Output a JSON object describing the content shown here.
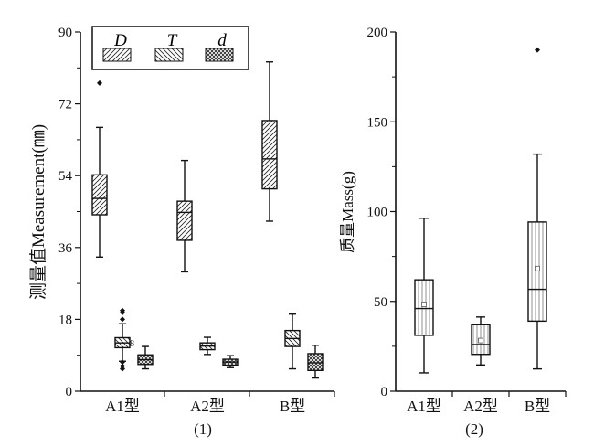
{
  "chart_data": [
    {
      "type": "box",
      "panel_label": "(1)",
      "ylabel": "测量值Measurement(㎜)",
      "ylim": [
        0,
        90
      ],
      "yticks": [
        "0",
        "18",
        "36",
        "54",
        "72",
        "90"
      ],
      "categories": [
        "A1型",
        "A2型",
        "B型"
      ],
      "legend": {
        "placement": "top-left",
        "entries": [
          "D",
          "T",
          "d"
        ]
      },
      "annotation": "8",
      "series": [
        {
          "name": "D",
          "pattern": "forward-hatch",
          "boxes": [
            {
              "min": 33.6,
              "q1": 44.2,
              "median": 48.3,
              "q3": 54.2,
              "max": 66.1,
              "outliers": [
                77.2
              ]
            },
            {
              "min": 29.9,
              "q1": 37.8,
              "median": 44.8,
              "q3": 47.6,
              "max": 57.8,
              "outliers": []
            },
            {
              "min": 42.6,
              "q1": 50.7,
              "median": 58.2,
              "q3": 67.8,
              "max": 82.5,
              "outliers": []
            }
          ]
        },
        {
          "name": "T",
          "pattern": "back-hatch",
          "boxes": [
            {
              "min": 7.5,
              "q1": 10.9,
              "median": 12.1,
              "q3": 13.4,
              "max": 16.9,
              "outliers": [
                20.2,
                19.7,
                18.0,
                7.3,
                6.3,
                5.6
              ]
            },
            {
              "min": 9.2,
              "q1": 10.4,
              "median": 11.3,
              "q3": 12.1,
              "max": 13.5,
              "outliers": []
            },
            {
              "min": 5.6,
              "q1": 11.2,
              "median": 13.2,
              "q3": 15.2,
              "max": 19.3,
              "outliers": []
            }
          ]
        },
        {
          "name": "d",
          "pattern": "cross-hatch",
          "boxes": [
            {
              "min": 5.6,
              "q1": 6.7,
              "median": 7.9,
              "q3": 9.1,
              "max": 11.2,
              "outliers": []
            },
            {
              "min": 5.9,
              "q1": 6.5,
              "median": 7.3,
              "q3": 8.0,
              "max": 8.9,
              "outliers": []
            },
            {
              "min": 3.3,
              "q1": 5.2,
              "median": 7.1,
              "q3": 9.4,
              "max": 11.5,
              "outliers": []
            }
          ]
        }
      ]
    },
    {
      "type": "box",
      "panel_label": "(2)",
      "ylabel": "质量Mass(g)",
      "ylim": [
        0,
        200
      ],
      "yticks": [
        "0",
        "50",
        "100",
        "150",
        "200"
      ],
      "categories": [
        "A1型",
        "A2型",
        "B型"
      ],
      "series": [
        {
          "pattern": "vertical-lines",
          "boxes": [
            {
              "min": 10.2,
              "q1": 31.1,
              "median": 46,
              "q3": 62,
              "max": 96.3,
              "mean": 48.4,
              "outliers": []
            },
            {
              "min": 14.6,
              "q1": 20.5,
              "median": 26,
              "q3": 37,
              "max": 41.3,
              "mean": 28.2,
              "outliers": []
            },
            {
              "min": 12.4,
              "q1": 39,
              "median": 56.7,
              "q3": 94.2,
              "max": 132,
              "mean": 68.3,
              "outliers": [
                190
              ]
            }
          ]
        }
      ]
    }
  ]
}
